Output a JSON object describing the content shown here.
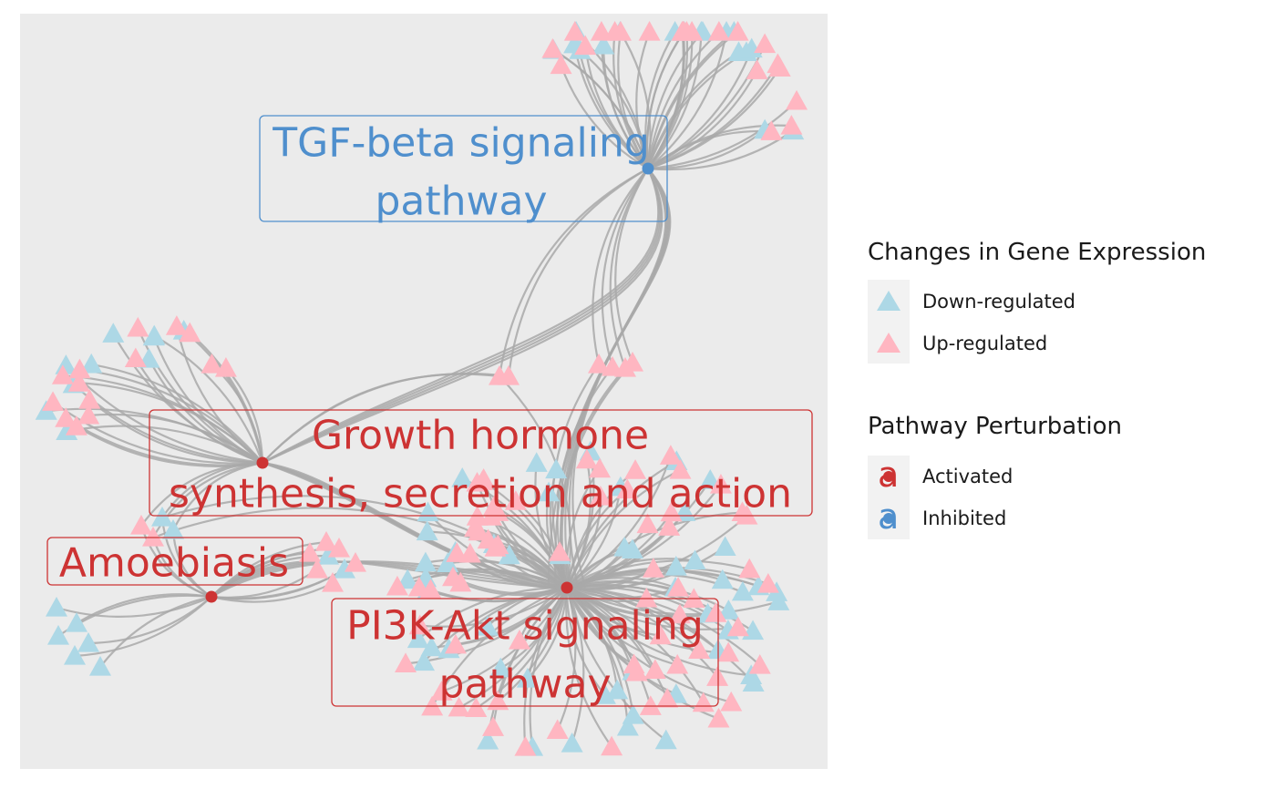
{
  "colors": {
    "panel_bg": "#ebebeb",
    "edge": "#a9a9a9",
    "down_regulated": "#add8e6",
    "up_regulated": "#ffb6c1",
    "activated": "#cd3333",
    "inhibited": "#4f8fcd"
  },
  "pathways": [
    {
      "id": "tgf",
      "label": [
        "TGF-beta signaling",
        "pathway"
      ],
      "status": "Inhibited",
      "genes_down": 18,
      "genes_up": 22
    },
    {
      "id": "gh",
      "label": [
        "Growth hormone",
        "synthesis, secretion and action"
      ],
      "status": "Activated",
      "genes_down": 10,
      "genes_up": 14
    },
    {
      "id": "amoeb",
      "label": [
        "Amoebiasis"
      ],
      "status": "Activated",
      "genes_down": 8,
      "genes_up": 6
    },
    {
      "id": "pi3k",
      "label": [
        "PI3K-Akt signaling",
        "pathway"
      ],
      "status": "Activated",
      "genes_down": 55,
      "genes_up": 70
    }
  ],
  "legend": {
    "expression": {
      "title": "Changes in Gene Expression",
      "items": [
        {
          "label": "Down-regulated",
          "color": "#add8e6",
          "symbol": "triangle"
        },
        {
          "label": "Up-regulated",
          "color": "#ffb6c1",
          "symbol": "triangle"
        }
      ]
    },
    "perturbation": {
      "title": "Pathway Perturbation",
      "items": [
        {
          "label": "Activated",
          "color": "#cd3333",
          "symbol": "a"
        },
        {
          "label": "Inhibited",
          "color": "#4f8fcd",
          "symbol": "a"
        }
      ]
    }
  }
}
